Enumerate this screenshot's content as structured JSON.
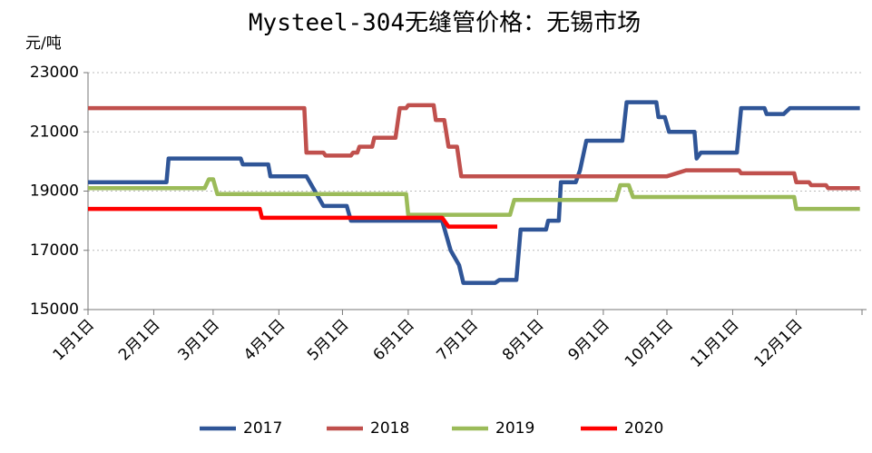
{
  "chart_data": {
    "type": "line",
    "title": "Mysteel-304无缝管价格：无锡市场",
    "y_label": "元/吨",
    "ylim": [
      15000,
      23000
    ],
    "yticks": [
      15000,
      17000,
      19000,
      21000,
      23000
    ],
    "xticks": [
      "1月1日",
      "2月1日",
      "3月1日",
      "4月1日",
      "5月1日",
      "6月1日",
      "7月1日",
      "8月1日",
      "9月1日",
      "10月1日",
      "11月1日",
      "12月1日"
    ],
    "grid": true,
    "legend": "bottom",
    "series": [
      {
        "name": "2017",
        "color": "#2f5597",
        "x": [
          "1月1日",
          "2月7日",
          "2月8日",
          "3月14日",
          "3月15日",
          "3月27日",
          "3月28日",
          "4月14日",
          "4月18日",
          "4月22日",
          "5月3日",
          "5月5日",
          "6月17日",
          "6月21日",
          "6月25日",
          "6月27日",
          "7月12日",
          "7月14日",
          "7月22日",
          "7月24日",
          "8月5日",
          "8月6日",
          "8月11日",
          "8月12日",
          "8月19日",
          "8月21日",
          "8月24日",
          "9月10日",
          "9月12日",
          "9月26日",
          "9月27日",
          "9月30日",
          "10月2日",
          "10月14日",
          "10月15日",
          "10月17日",
          "11月3日",
          "11月5日",
          "11月16日",
          "11月17日",
          "11月25日",
          "11月28日",
          "12月31日"
        ],
        "values": [
          19300,
          19300,
          20100,
          20100,
          19900,
          19900,
          19500,
          19500,
          19000,
          18500,
          18500,
          18000,
          18000,
          17000,
          16500,
          15900,
          15900,
          16000,
          16000,
          17700,
          17700,
          18000,
          18000,
          19300,
          19300,
          19700,
          20700,
          20700,
          22000,
          22000,
          21500,
          21500,
          21000,
          21000,
          20100,
          20300,
          20300,
          21800,
          21800,
          21600,
          21600,
          21800,
          21800
        ]
      },
      {
        "name": "2018",
        "color": "#c0504d",
        "x": [
          "1月1日",
          "4月13日",
          "4月14日",
          "4月22日",
          "4月23日",
          "5月5日",
          "5月6日",
          "5月8日",
          "5月9日",
          "5月15日",
          "5月16日",
          "5月26日",
          "5月28日",
          "5月31日",
          "6月1日",
          "6月13日",
          "6月14日",
          "6月18日",
          "6月20日",
          "6月24日",
          "6月26日",
          "10月1日",
          "10月10日",
          "11月4日",
          "11月5日",
          "11月30日",
          "12月1日",
          "12月7日",
          "12月8日",
          "12月15日",
          "12月16日",
          "12月31日"
        ],
        "values": [
          21800,
          21800,
          20300,
          20300,
          20200,
          20200,
          20300,
          20300,
          20500,
          20500,
          20800,
          20800,
          21800,
          21800,
          21900,
          21900,
          21400,
          21400,
          20500,
          20500,
          19500,
          19500,
          19700,
          19700,
          19600,
          19600,
          19300,
          19300,
          19200,
          19200,
          19100,
          19100
        ]
      },
      {
        "name": "2019",
        "color": "#9bbb59",
        "x": [
          "1月1日",
          "2月25日",
          "2月27日",
          "3月1日",
          "3月3日",
          "5月31日",
          "6月1日",
          "7月19日",
          "7月21日",
          "9月7日",
          "9月9日",
          "9月13日",
          "9月15日",
          "11月30日",
          "12月1日",
          "12月31日"
        ],
        "values": [
          19100,
          19100,
          19400,
          19400,
          18900,
          18900,
          18200,
          18200,
          18700,
          18700,
          19200,
          19200,
          18800,
          18800,
          18400,
          18400
        ]
      },
      {
        "name": "2020",
        "color": "#ff0000",
        "x": [
          "1月1日",
          "3月23日",
          "3月24日",
          "6月17日",
          "6月19日",
          "6月20日",
          "7月13日"
        ],
        "values": [
          18400,
          18400,
          18100,
          18100,
          17900,
          17800,
          17800
        ]
      }
    ]
  }
}
